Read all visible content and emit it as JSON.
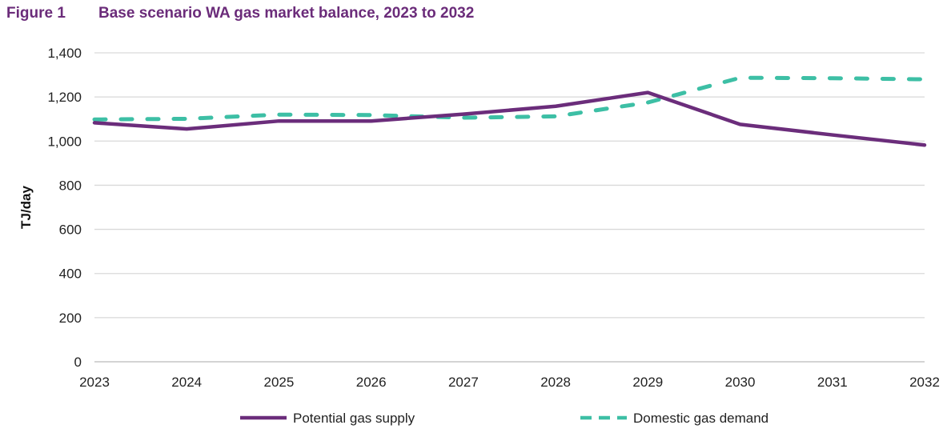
{
  "figure": {
    "number": "Figure 1",
    "title": "Base scenario WA gas market balance, 2023 to 2032"
  },
  "chart_data": {
    "type": "line",
    "title": "Base scenario WA gas market balance, 2023 to 2032",
    "xlabel": "",
    "ylabel": "TJ/day",
    "ylim": [
      0,
      1400
    ],
    "yticks": [
      0,
      200,
      400,
      600,
      800,
      1000,
      1200,
      1400
    ],
    "ytick_labels": [
      "0",
      "200",
      "400",
      "600",
      "800",
      "1,000",
      "1,200",
      "1,400"
    ],
    "categories": [
      "2023",
      "2024",
      "2025",
      "2026",
      "2027",
      "2028",
      "2029",
      "2030",
      "2031",
      "2032"
    ],
    "grid": true,
    "legend": "bottom",
    "series": [
      {
        "name": "Potential gas supply",
        "color": "#6b2d7b",
        "style": "solid",
        "values": [
          1083,
          1055,
          1091,
          1091,
          1122,
          1158,
          1220,
          1076,
          1028,
          982
        ]
      },
      {
        "name": "Domestic gas demand",
        "color": "#3dbfa5",
        "style": "dashed",
        "values": [
          1098,
          1101,
          1120,
          1118,
          1106,
          1112,
          1175,
          1287,
          1285,
          1280
        ]
      }
    ]
  }
}
